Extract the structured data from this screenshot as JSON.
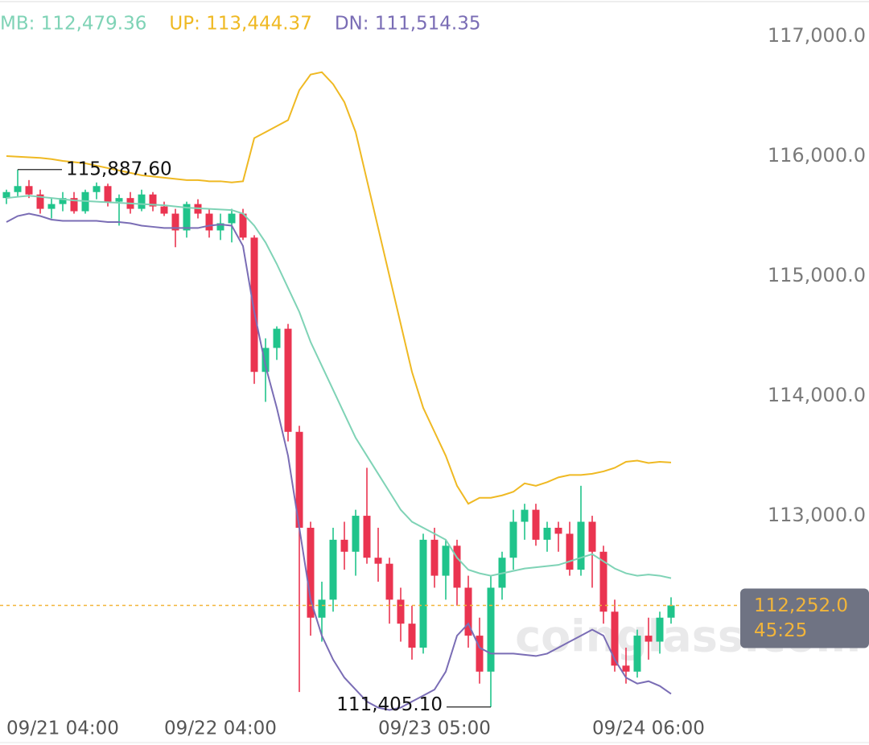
{
  "chart_data": {
    "type": "candlestick",
    "categories": [
      null,
      null,
      null,
      null,
      null,
      "09/21 04:00",
      null,
      null,
      null,
      null,
      null,
      null,
      null,
      null,
      null,
      null,
      null,
      null,
      null,
      "09/22 04:00",
      null,
      null,
      null,
      null,
      null,
      null,
      null,
      null,
      null,
      null,
      null,
      null,
      null,
      null,
      null,
      null,
      null,
      null,
      "09/23 05:00",
      null,
      null,
      null,
      null,
      null,
      null,
      null,
      null,
      null,
      null,
      null,
      null,
      null,
      null,
      null,
      null,
      null,
      null,
      "09/24 06:00",
      null,
      null
    ],
    "open": [
      115650,
      115700,
      115750,
      115680,
      115560,
      115600,
      115650,
      115540,
      115700,
      115750,
      115620,
      115650,
      115560,
      115680,
      115580,
      115520,
      115380,
      115600,
      115520,
      115380,
      115440,
      115520,
      115320,
      114200,
      114400,
      114560,
      113700,
      112900,
      112150,
      112300,
      112800,
      112700,
      113000,
      112650,
      112600,
      112300,
      112100,
      111900,
      112800,
      112500,
      112750,
      112400,
      112000,
      111700,
      112400,
      112650,
      112950,
      113050,
      112800,
      112900,
      112850,
      112550,
      112950,
      112700,
      112200,
      111750,
      111700,
      112000,
      111950,
      112150
    ],
    "high": [
      115720,
      115887.6,
      115800,
      115720,
      115650,
      115700,
      115700,
      115720,
      115780,
      115770,
      115680,
      115700,
      115720,
      115700,
      115620,
      115560,
      115620,
      115640,
      115560,
      115520,
      115560,
      115560,
      115340,
      114480,
      114580,
      114600,
      113750,
      112950,
      112450,
      112900,
      112950,
      113050,
      113400,
      112900,
      112650,
      112400,
      112250,
      112850,
      112900,
      112800,
      112800,
      112500,
      112150,
      112500,
      112700,
      113050,
      113100,
      113100,
      112950,
      112950,
      112950,
      113250,
      113000,
      112750,
      112300,
      111900,
      112050,
      112150,
      112200,
      112320
    ],
    "low": [
      115600,
      115660,
      115650,
      115520,
      115480,
      115540,
      115520,
      115520,
      115640,
      115580,
      115420,
      115520,
      115540,
      115540,
      115500,
      115240,
      115320,
      115480,
      115320,
      115300,
      115280,
      115300,
      114100,
      113950,
      114300,
      113620,
      111530,
      112000,
      111950,
      112200,
      112550,
      112500,
      112600,
      112450,
      112100,
      111950,
      111800,
      111850,
      112400,
      112300,
      112250,
      111900,
      111600,
      111405.1,
      112300,
      112550,
      112800,
      112750,
      112700,
      112700,
      112500,
      112500,
      112400,
      112100,
      111700,
      111600,
      111650,
      111800,
      111850,
      112100
    ],
    "close": [
      115700,
      115750,
      115680,
      115560,
      115600,
      115650,
      115540,
      115700,
      115750,
      115620,
      115650,
      115560,
      115680,
      115580,
      115520,
      115380,
      115600,
      115520,
      115380,
      115440,
      115520,
      115320,
      114200,
      114400,
      114560,
      113700,
      112900,
      112150,
      112300,
      112800,
      112700,
      113000,
      112650,
      112600,
      112300,
      112100,
      111900,
      112800,
      112500,
      112750,
      112400,
      112000,
      111700,
      112400,
      112650,
      112950,
      113050,
      112800,
      112900,
      112850,
      112550,
      112950,
      112700,
      112200,
      111750,
      111700,
      112000,
      111950,
      112150,
      112252
    ],
    "up_color": "#20c48b",
    "down_color": "#ea3450",
    "lines": [
      {
        "name": "MB",
        "legend": "MB: 112,479.36",
        "color": "#7fd3b6",
        "values": [
          115650,
          115660,
          115670,
          115660,
          115650,
          115640,
          115630,
          115625,
          115620,
          115615,
          115610,
          115605,
          115600,
          115595,
          115590,
          115580,
          115570,
          115565,
          115560,
          115555,
          115550,
          115520,
          115420,
          115280,
          115100,
          114900,
          114700,
          114450,
          114250,
          114050,
          113850,
          113650,
          113500,
          113350,
          113200,
          113050,
          112950,
          112900,
          112850,
          112800,
          112650,
          112550,
          112520,
          112500,
          112520,
          112540,
          112560,
          112570,
          112580,
          112590,
          112620,
          112650,
          112680,
          112620,
          112560,
          112520,
          112500,
          112510,
          112500,
          112479.36
        ]
      },
      {
        "name": "UP",
        "legend": "UP: 113,444.37",
        "color": "#efb923",
        "values": [
          116000,
          115995,
          115990,
          115985,
          115975,
          115960,
          115950,
          115940,
          115920,
          115900,
          115880,
          115860,
          115840,
          115830,
          115820,
          115810,
          115800,
          115800,
          115790,
          115790,
          115780,
          115790,
          116150,
          116200,
          116250,
          116300,
          116550,
          116680,
          116700,
          116600,
          116450,
          116200,
          115800,
          115400,
          115000,
          114600,
          114200,
          113900,
          113700,
          113500,
          113250,
          113100,
          113150,
          113150,
          113170,
          113200,
          113270,
          113250,
          113280,
          113320,
          113340,
          113340,
          113350,
          113370,
          113400,
          113450,
          113460,
          113440,
          113450,
          113444.37
        ]
      },
      {
        "name": "DN",
        "legend": "DN: 111,514.35",
        "color": "#7a6db5",
        "values": [
          115450,
          115500,
          115520,
          115500,
          115470,
          115460,
          115460,
          115460,
          115460,
          115450,
          115450,
          115440,
          115420,
          115410,
          115400,
          115400,
          115400,
          115400,
          115420,
          115430,
          115420,
          115250,
          114700,
          114250,
          113900,
          113500,
          112900,
          112300,
          112000,
          111800,
          111650,
          111550,
          111450,
          111400,
          111380,
          111400,
          111450,
          111500,
          111550,
          111700,
          112000,
          112100,
          111900,
          111850,
          111850,
          111850,
          111840,
          111830,
          111850,
          111900,
          111950,
          112000,
          112050,
          112000,
          111800,
          111650,
          111600,
          111620,
          111580,
          111514.35
        ]
      }
    ],
    "high_label": "115,887.60",
    "low_label": "111,405.10",
    "last_price": {
      "value": 112252,
      "label": "112,252.0"
    },
    "countdown": "45:25",
    "price_color": "#f2b53a",
    "watermark": "coinglass.com",
    "ylim": [
      111329.5,
      117302
    ],
    "yticks": [
      {
        "value": 117000,
        "label": "117,000.0"
      },
      {
        "value": 116000,
        "label": "116,000.0"
      },
      {
        "value": 115000,
        "label": "115,000.0"
      },
      {
        "value": 114000,
        "label": "114,000.0"
      },
      {
        "value": 113000,
        "label": "113,000.0"
      }
    ]
  }
}
